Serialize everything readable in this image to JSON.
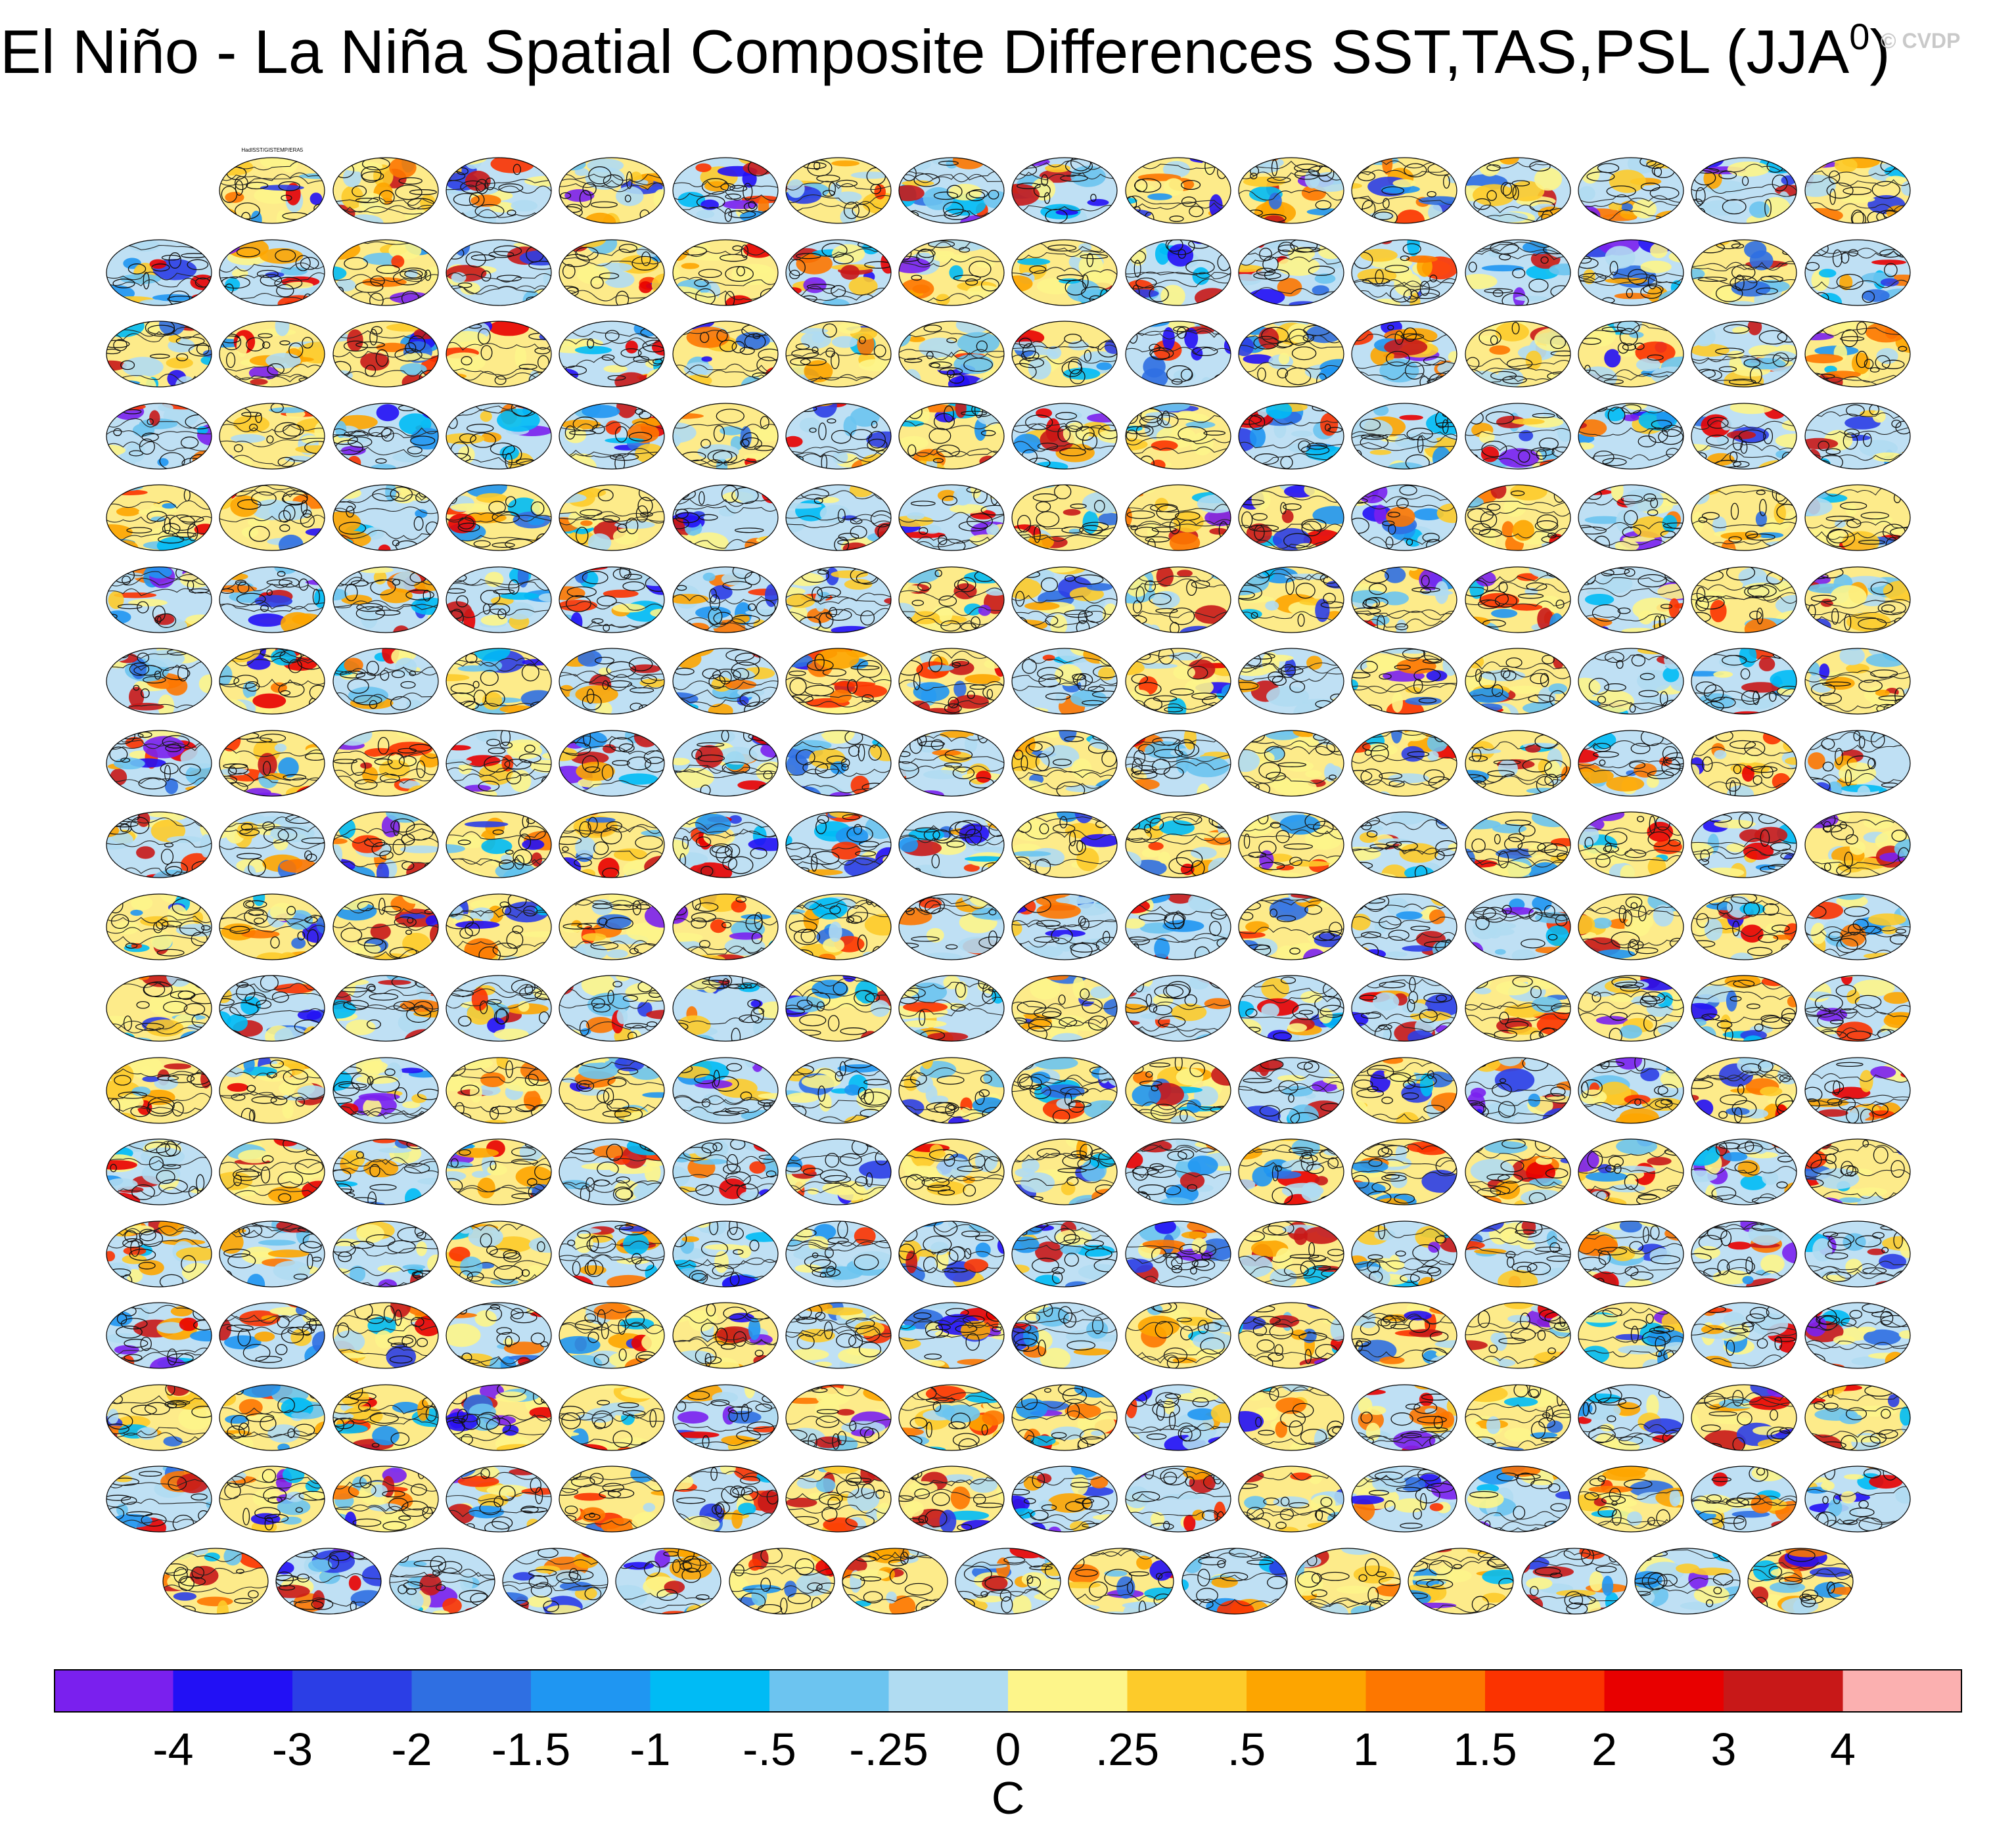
{
  "title": "El Niño - La Niña Spatial Composite Differences SST,TAS,PSL (JJA",
  "title_superscript": "0",
  "title_suffix": ")",
  "watermark": "© CVDP",
  "chart_data": {
    "type": "heatmap",
    "title": "El Niño - La Niña Spatial Composite Differences SST,TAS,PSL (JJA0)",
    "panel_grid": {
      "row_counts": [
        15,
        16,
        16,
        16,
        16,
        16,
        16,
        16,
        16,
        16,
        16,
        16,
        16,
        16,
        16,
        16,
        16,
        15
      ],
      "first_row_starts_at_column": 1,
      "last_row_centered": true
    },
    "first_panel_label": "HadISST/GISTEMP/ERA5",
    "colorbar": {
      "label": "C",
      "ticks": [
        "-4",
        "-3",
        "-2",
        "-1.5",
        "-1",
        "-.5",
        "-.25",
        "0",
        ".25",
        ".5",
        "1",
        "1.5",
        "2",
        "3",
        "4"
      ],
      "colors": [
        "#7a20ee",
        "#2210f5",
        "#2b3ee6",
        "#2f6fe2",
        "#1f96f2",
        "#00bbf5",
        "#6cc4f0",
        "#b0dcf2",
        "#fdf58a",
        "#fdcb2a",
        "#fda500",
        "#fd7700",
        "#fb3300",
        "#e80000",
        "#c81818",
        "#fbb0b0"
      ]
    }
  }
}
